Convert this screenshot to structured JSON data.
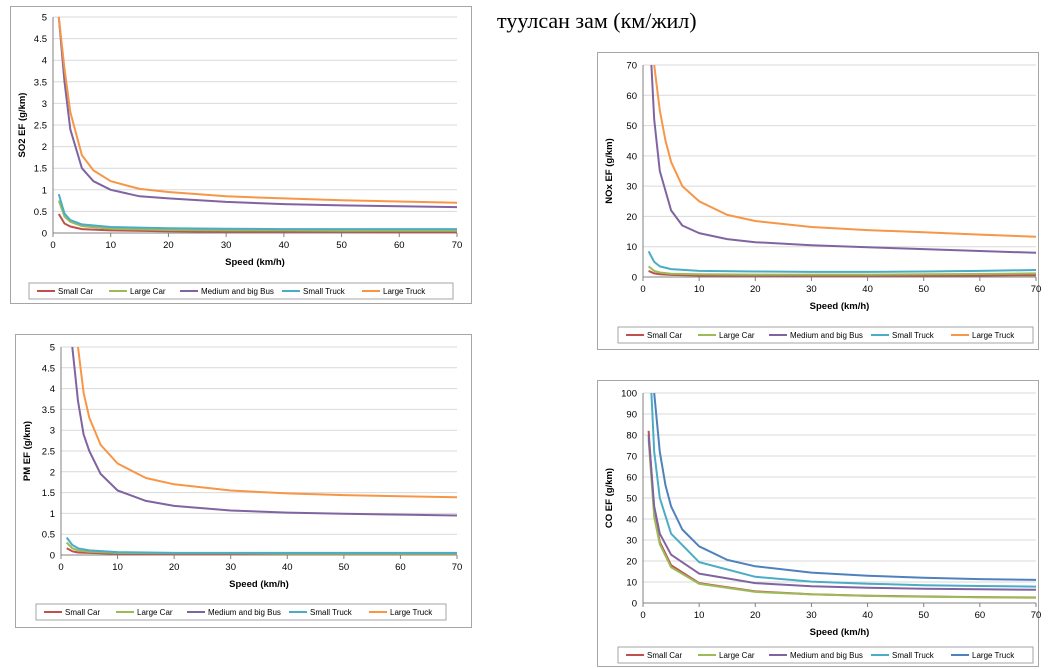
{
  "heading": "туулсан зам (км/жил)",
  "legend_labels": [
    "Small Car",
    "Large Car",
    "Medium and big Bus",
    "Small Truck",
    "Large Truck"
  ],
  "colors": {
    "small_car": "#c0504d",
    "large_car": "#9bbb59",
    "medium_big_bus": "#8064a2",
    "small_truck": "#4bacc6",
    "large_truck": "#f79646",
    "large_truck_co": "#4f81bd",
    "gridline": "#d9d9d9",
    "axis": "#808080"
  },
  "chart_data": [
    {
      "id": "so2",
      "type": "line",
      "ylabel": "SO2 EF (g/km)",
      "xlabel": "Speed (km/h)",
      "xlim": [
        0,
        70
      ],
      "ylim": [
        0,
        5
      ],
      "x_ticks": [
        "0",
        "10",
        "20",
        "30",
        "40",
        "50",
        "60",
        "70"
      ],
      "y_ticks": [
        "0",
        "0.5",
        "1",
        "1.5",
        "2",
        "2.5",
        "3",
        "3.5",
        "4",
        "4.5",
        "5"
      ],
      "grid": true,
      "legend_position": "bottom",
      "series": [
        {
          "name": "Small Car",
          "color": "#c0504d",
          "x": [
            1,
            2,
            3,
            5,
            10,
            20,
            30,
            40,
            50,
            60,
            70
          ],
          "y": [
            0.44,
            0.22,
            0.15,
            0.09,
            0.06,
            0.04,
            0.03,
            0.03,
            0.03,
            0.02,
            0.02
          ]
        },
        {
          "name": "Large Car",
          "color": "#9bbb59",
          "x": [
            1,
            2,
            3,
            5,
            10,
            20,
            30,
            40,
            50,
            60,
            70
          ],
          "y": [
            0.75,
            0.38,
            0.26,
            0.16,
            0.1,
            0.07,
            0.06,
            0.06,
            0.05,
            0.05,
            0.05
          ]
        },
        {
          "name": "Medium and big Bus",
          "color": "#8064a2",
          "x": [
            1,
            2,
            3,
            5,
            7,
            10,
            15,
            20,
            30,
            40,
            50,
            60,
            70
          ],
          "y": [
            5,
            3.5,
            2.4,
            1.5,
            1.2,
            1.0,
            0.85,
            0.8,
            0.72,
            0.67,
            0.64,
            0.62,
            0.6
          ]
        },
        {
          "name": "Small Truck",
          "color": "#4bacc6",
          "x": [
            1,
            2,
            3,
            5,
            10,
            20,
            30,
            40,
            50,
            60,
            70
          ],
          "y": [
            0.9,
            0.45,
            0.3,
            0.2,
            0.14,
            0.11,
            0.1,
            0.09,
            0.09,
            0.09,
            0.09
          ]
        },
        {
          "name": "Large Truck",
          "color": "#f79646",
          "x": [
            1,
            2,
            3,
            5,
            7,
            10,
            15,
            20,
            30,
            40,
            50,
            60,
            70
          ],
          "y": [
            5,
            3.8,
            2.8,
            1.8,
            1.45,
            1.2,
            1.02,
            0.95,
            0.85,
            0.8,
            0.76,
            0.73,
            0.7
          ]
        }
      ]
    },
    {
      "id": "nox",
      "type": "line",
      "ylabel": "NOx EF (g/km)",
      "xlabel": "Speed (km/h)",
      "xlim": [
        0,
        70
      ],
      "ylim": [
        0,
        70
      ],
      "x_ticks": [
        "0",
        "10",
        "20",
        "30",
        "40",
        "50",
        "60",
        "70"
      ],
      "y_ticks": [
        "0",
        "10",
        "20",
        "30",
        "40",
        "50",
        "60",
        "70"
      ],
      "grid": true,
      "legend_position": "bottom",
      "series": [
        {
          "name": "Small Car",
          "color": "#c0504d",
          "x": [
            1,
            2,
            3,
            5,
            10,
            20,
            30,
            40,
            50,
            60,
            70
          ],
          "y": [
            2,
            1.2,
            0.9,
            0.7,
            0.5,
            0.4,
            0.4,
            0.4,
            0.4,
            0.5,
            0.6
          ]
        },
        {
          "name": "Large Car",
          "color": "#9bbb59",
          "x": [
            1,
            2,
            3,
            5,
            10,
            20,
            30,
            40,
            50,
            60,
            70
          ],
          "y": [
            3.5,
            2,
            1.5,
            1.1,
            0.9,
            0.8,
            0.8,
            0.8,
            0.9,
            1.0,
            1.2
          ]
        },
        {
          "name": "Medium and big Bus",
          "color": "#8064a2",
          "x": [
            1.5,
            2,
            3,
            5,
            7,
            10,
            15,
            20,
            30,
            40,
            50,
            60,
            70
          ],
          "y": [
            70,
            52,
            35,
            22,
            17,
            14.5,
            12.5,
            11.5,
            10.5,
            9.8,
            9.2,
            8.6,
            8
          ]
        },
        {
          "name": "Small Truck",
          "color": "#4bacc6",
          "x": [
            1,
            2,
            3,
            5,
            10,
            20,
            30,
            40,
            50,
            60,
            70
          ],
          "y": [
            8.5,
            5,
            3.5,
            2.6,
            2,
            1.8,
            1.7,
            1.7,
            1.8,
            2.0,
            2.3
          ]
        },
        {
          "name": "Large Truck",
          "color": "#f79646",
          "x": [
            2,
            3,
            4,
            5,
            7,
            10,
            15,
            20,
            30,
            40,
            50,
            60,
            70
          ],
          "y": [
            70,
            55,
            45,
            38,
            30,
            25,
            20.5,
            18.5,
            16.5,
            15.5,
            14.8,
            14,
            13.3
          ]
        }
      ]
    },
    {
      "id": "pm",
      "type": "line",
      "ylabel": "PM EF (g/km)",
      "xlabel": "Speed (km/h)",
      "xlim": [
        0,
        70
      ],
      "ylim": [
        0,
        5
      ],
      "x_ticks": [
        "0",
        "10",
        "20",
        "30",
        "40",
        "50",
        "60",
        "70"
      ],
      "y_ticks": [
        "0",
        "0.5",
        "1",
        "1.5",
        "2",
        "2.5",
        "3",
        "3.5",
        "4",
        "4.5",
        "5"
      ],
      "grid": true,
      "legend_position": "bottom",
      "series": [
        {
          "name": "Small Car",
          "color": "#c0504d",
          "x": [
            1,
            2,
            3,
            5,
            10,
            20,
            30,
            40,
            50,
            60,
            70
          ],
          "y": [
            0.16,
            0.09,
            0.06,
            0.05,
            0.03,
            0.02,
            0.02,
            0.02,
            0.02,
            0.02,
            0.02
          ]
        },
        {
          "name": "Large Car",
          "color": "#9bbb59",
          "x": [
            1,
            2,
            3,
            5,
            10,
            20,
            30,
            40,
            50,
            60,
            70
          ],
          "y": [
            0.3,
            0.16,
            0.11,
            0.08,
            0.05,
            0.04,
            0.04,
            0.03,
            0.03,
            0.03,
            0.03
          ]
        },
        {
          "name": "Medium and big Bus",
          "color": "#8064a2",
          "x": [
            2,
            3,
            4,
            5,
            7,
            10,
            15,
            20,
            30,
            40,
            50,
            60,
            70
          ],
          "y": [
            5,
            3.7,
            2.9,
            2.5,
            1.95,
            1.55,
            1.3,
            1.18,
            1.07,
            1.02,
            0.99,
            0.97,
            0.95
          ]
        },
        {
          "name": "Small Truck",
          "color": "#4bacc6",
          "x": [
            1,
            2,
            3,
            5,
            10,
            20,
            30,
            40,
            50,
            60,
            70
          ],
          "y": [
            0.42,
            0.24,
            0.16,
            0.11,
            0.07,
            0.05,
            0.05,
            0.05,
            0.05,
            0.05,
            0.05
          ]
        },
        {
          "name": "Large Truck",
          "color": "#f79646",
          "x": [
            3,
            4,
            5,
            7,
            10,
            15,
            20,
            30,
            40,
            50,
            60,
            70
          ],
          "y": [
            5,
            3.9,
            3.3,
            2.65,
            2.2,
            1.85,
            1.7,
            1.55,
            1.48,
            1.44,
            1.41,
            1.39
          ]
        }
      ]
    },
    {
      "id": "co",
      "type": "line",
      "ylabel": "CO EF (g/km)",
      "xlabel": "Speed (km/h)",
      "xlim": [
        0,
        70
      ],
      "ylim": [
        0,
        100
      ],
      "x_ticks": [
        "0",
        "10",
        "20",
        "30",
        "40",
        "50",
        "60",
        "70"
      ],
      "y_ticks": [
        "0",
        "10",
        "20",
        "30",
        "40",
        "50",
        "60",
        "70",
        "80",
        "90",
        "100"
      ],
      "grid": true,
      "legend_position": "bottom",
      "series": [
        {
          "name": "Small Car",
          "color": "#c0504d",
          "x": [
            1,
            2,
            3,
            5,
            10,
            20,
            30,
            40,
            50,
            60,
            70
          ],
          "y": [
            82,
            43,
            29,
            18,
            9.5,
            5.5,
            4.2,
            3.5,
            3.1,
            2.8,
            2.6
          ]
        },
        {
          "name": "Large Car",
          "color": "#9bbb59",
          "x": [
            1,
            2,
            3,
            5,
            10,
            20,
            30,
            40,
            50,
            60,
            70
          ],
          "y": [
            78,
            41,
            28,
            17,
            9.2,
            5.3,
            4.1,
            3.4,
            3.0,
            2.7,
            2.5
          ]
        },
        {
          "name": "Medium and big Bus",
          "color": "#8064a2",
          "x": [
            1,
            2,
            3,
            5,
            10,
            20,
            30,
            40,
            50,
            60,
            70
          ],
          "y": [
            80,
            46,
            33,
            23,
            14,
            9.5,
            8,
            7.3,
            6.8,
            6.5,
            6.3
          ]
        },
        {
          "name": "Small Truck",
          "color": "#4bacc6",
          "x": [
            1.5,
            2,
            3,
            5,
            10,
            20,
            30,
            40,
            50,
            60,
            70
          ],
          "y": [
            100,
            72,
            50,
            33,
            19.5,
            12.5,
            10.2,
            9.2,
            8.5,
            8.1,
            7.8
          ]
        },
        {
          "name": "Large Truck",
          "color": "#4f81bd",
          "x": [
            2,
            3,
            4,
            5,
            7,
            10,
            15,
            20,
            30,
            40,
            50,
            60,
            70
          ],
          "y": [
            100,
            72,
            56,
            46,
            35,
            27,
            20.5,
            17.5,
            14.5,
            13,
            12,
            11.4,
            11
          ]
        }
      ]
    }
  ]
}
